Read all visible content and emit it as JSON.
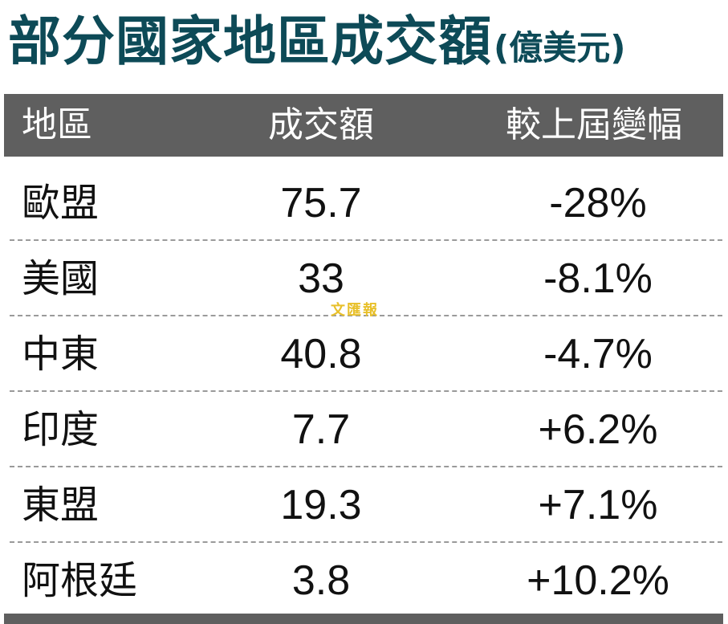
{
  "chart_data": {
    "type": "table",
    "title": "部分國家地區成交額",
    "unit": "(億美元)",
    "columns": [
      "地區",
      "成交額",
      "較上屆變幅"
    ],
    "rows": [
      {
        "region": "歐盟",
        "value": "75.7",
        "change": "-28%"
      },
      {
        "region": "美國",
        "value": "33",
        "change": "-8.1%"
      },
      {
        "region": "中東",
        "value": "40.8",
        "change": "-4.7%"
      },
      {
        "region": "印度",
        "value": "7.7",
        "change": "+6.2%"
      },
      {
        "region": "東盟",
        "value": "19.3",
        "change": "+7.1%"
      },
      {
        "region": "阿根廷",
        "value": "3.8",
        "change": "+10.2%"
      }
    ]
  },
  "watermark": "文匯報",
  "colors": {
    "title": "#0d4a57",
    "header_bg": "#5f5f5f",
    "header_text": "#ffffff",
    "watermark": "#e8c02a"
  }
}
